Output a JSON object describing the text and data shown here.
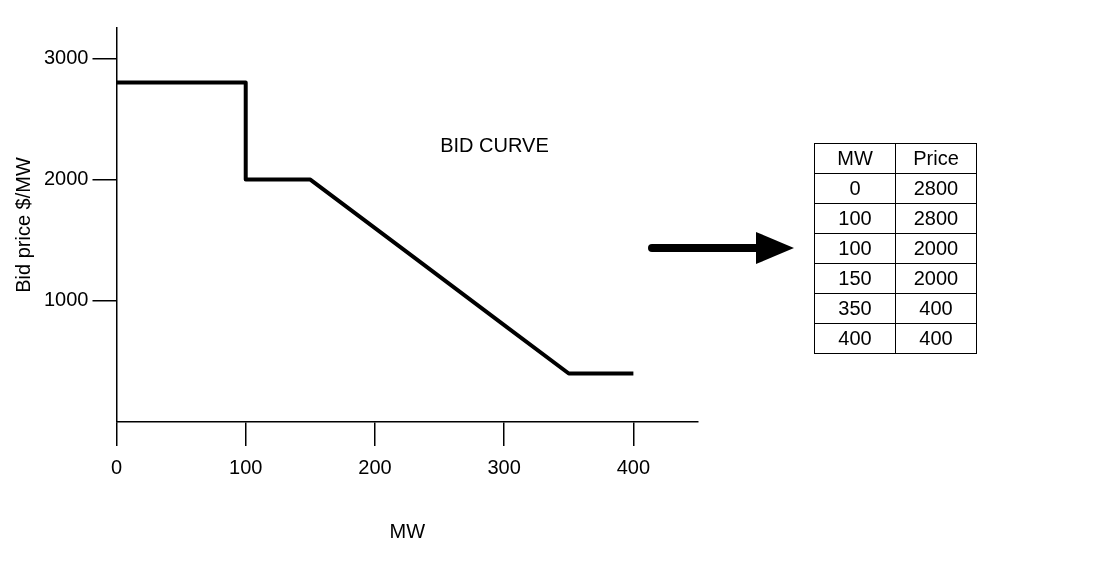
{
  "chart_data": [
    {
      "type": "line",
      "xlabel": "MW",
      "ylabel": "Bid price $/MW",
      "annotations": [
        "BID CURVE"
      ],
      "x": [
        0,
        100,
        100,
        150,
        350,
        400
      ],
      "series": [
        {
          "color": "#000000",
          "values": [
            2800,
            2800,
            2000,
            2000,
            400,
            400
          ]
        }
      ],
      "xlim": [
        0,
        450
      ],
      "xticks": [
        0,
        100,
        200,
        300,
        400
      ],
      "ylim": [
        0,
        3250
      ],
      "yticks": [
        1000,
        2000,
        3000
      ],
      "grid": false,
      "legend": false,
      "marker": "none",
      "line_style": "solid"
    },
    {
      "type": "other",
      "annotations": [
        "MW",
        "Price",
        "0",
        "2800",
        "100",
        "2800",
        "100",
        "2000",
        "150",
        "2000",
        "350",
        "400",
        "400",
        "400"
      ]
    }
  ]
}
